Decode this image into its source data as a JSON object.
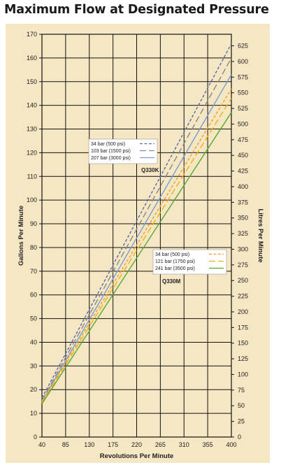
{
  "title": "Maximum Flow at Designated Pressure",
  "chart_data": {
    "type": "line",
    "xlabel": "Revolutions Per Minute",
    "ylabel_left": "Gallons Per Minute",
    "ylabel_right": "Litres Per Minute",
    "xlim": [
      40,
      400
    ],
    "ylim_left": [
      0,
      170
    ],
    "ylim_right": [
      0,
      643.5
    ],
    "x_ticks": [
      40,
      85,
      130,
      175,
      220,
      265,
      310,
      355,
      400
    ],
    "y_left_ticks": [
      0,
      10,
      20,
      30,
      40,
      50,
      60,
      70,
      80,
      90,
      100,
      110,
      120,
      130,
      140,
      150,
      160,
      170
    ],
    "y_right_ticks": [
      0,
      25,
      50,
      75,
      100,
      125,
      150,
      175,
      200,
      225,
      250,
      275,
      300,
      325,
      350,
      375,
      400,
      425,
      450,
      475,
      500,
      525,
      550,
      575,
      600,
      625
    ],
    "grid": true,
    "background": "#f5e6c4",
    "groups": [
      {
        "label": "Q330K",
        "legend_placement": "upper-center",
        "series": [
          {
            "name": "34 bar (500 psi)",
            "style": "short-dash",
            "color": "#5a6aa8",
            "x": [
              40,
              400
            ],
            "y": [
              16.5,
              166
            ]
          },
          {
            "name": "103 bar (1500 psi)",
            "style": "long-dash",
            "color": "#8a8a8a",
            "x": [
              40,
              400
            ],
            "y": [
              15.5,
              160
            ]
          },
          {
            "name": "207 bar (3000 psi)",
            "style": "solid",
            "color": "#7a9ed0",
            "x": [
              40,
              400
            ],
            "y": [
              15,
              153
            ]
          }
        ]
      },
      {
        "label": "Q330M",
        "legend_placement": "lower-right",
        "series": [
          {
            "name": "34 bar (500 psi)",
            "style": "short-dash",
            "color": "#e8a030",
            "x": [
              40,
              400
            ],
            "y": [
              15,
              147
            ]
          },
          {
            "name": "121 bar (1750 psi)",
            "style": "long-dash",
            "color": "#f0b010",
            "x": [
              40,
              400
            ],
            "y": [
              14.5,
              143
            ]
          },
          {
            "name": "241 bar (3500 psi)",
            "style": "solid",
            "color": "#5aa838",
            "x": [
              40,
              400
            ],
            "y": [
              14,
              137
            ]
          }
        ]
      }
    ]
  }
}
